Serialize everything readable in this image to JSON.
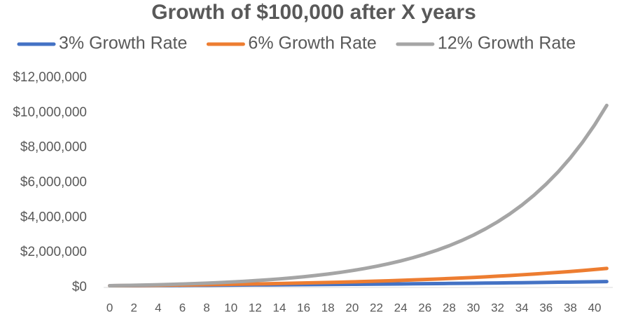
{
  "chart_data": {
    "type": "line",
    "title": "Growth of $100,000 after X years",
    "x": [
      0,
      1,
      2,
      3,
      4,
      5,
      6,
      7,
      8,
      9,
      10,
      11,
      12,
      13,
      14,
      15,
      16,
      17,
      18,
      19,
      20,
      21,
      22,
      23,
      24,
      25,
      26,
      27,
      28,
      29,
      30,
      31,
      32,
      33,
      34,
      35,
      36,
      37,
      38,
      39,
      40,
      41
    ],
    "xlim": [
      -0.5,
      41.5
    ],
    "xticks": [
      0,
      2,
      4,
      6,
      8,
      10,
      12,
      14,
      16,
      18,
      20,
      22,
      24,
      26,
      28,
      30,
      32,
      34,
      36,
      38,
      40
    ],
    "ylim": [
      0,
      12000000
    ],
    "yticks": [
      {
        "value": 0,
        "label": "$0"
      },
      {
        "value": 2000000,
        "label": "$2,000,000"
      },
      {
        "value": 4000000,
        "label": "$4,000,000"
      },
      {
        "value": 6000000,
        "label": "$6,000,000"
      },
      {
        "value": 8000000,
        "label": "$8,000,000"
      },
      {
        "value": 10000000,
        "label": "$10,000,000"
      },
      {
        "value": 12000000,
        "label": "$12,000,000"
      }
    ],
    "legend": "top",
    "series": [
      {
        "name": "3% Growth Rate",
        "color": "#4472c4",
        "values": [
          100000,
          103000,
          106000,
          109000,
          113000,
          116000,
          119000,
          123000,
          127000,
          130000,
          134000,
          138000,
          143000,
          147000,
          151000,
          156000,
          160000,
          165000,
          170000,
          175000,
          181000,
          186000,
          192000,
          197000,
          203000,
          209000,
          216000,
          222000,
          229000,
          236000,
          243000,
          250000,
          258000,
          265000,
          273000,
          281000,
          290000,
          299000,
          307000,
          317000,
          326000,
          336000
        ]
      },
      {
        "name": "6% Growth Rate",
        "color": "#ed7d31",
        "values": [
          100000,
          106000,
          112000,
          119000,
          126000,
          134000,
          142000,
          150000,
          159000,
          169000,
          179000,
          190000,
          201000,
          213000,
          226000,
          240000,
          254000,
          269000,
          285000,
          303000,
          321000,
          340000,
          360000,
          382000,
          405000,
          429000,
          455000,
          482000,
          511000,
          542000,
          574000,
          609000,
          645000,
          684000,
          725000,
          769000,
          815000,
          864000,
          915000,
          970000,
          1029000,
          1090000
        ]
      },
      {
        "name": "12% Growth Rate",
        "color": "#a5a5a5",
        "values": [
          100000,
          112000,
          125000,
          140000,
          157000,
          176000,
          197000,
          221000,
          248000,
          277000,
          311000,
          348000,
          390000,
          436000,
          489000,
          547000,
          613000,
          687000,
          769000,
          861000,
          965000,
          1080000,
          1210000,
          1355000,
          1518000,
          1700000,
          1904000,
          2132000,
          2388000,
          2675000,
          2996000,
          3356000,
          3758000,
          4209000,
          4714000,
          5280000,
          5914000,
          6623000,
          7418000,
          8308000,
          9305000,
          10422000
        ]
      }
    ]
  }
}
